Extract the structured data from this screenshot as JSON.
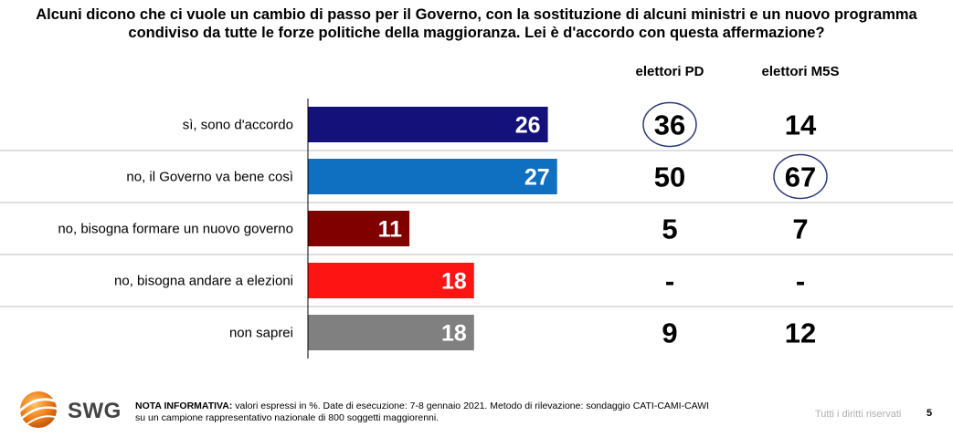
{
  "title_line1": "Alcuni dicono che ci vuole un cambio di passo per il Governo, con la sostituzione di alcuni ministri e un nuovo programma",
  "title_line2": "condiviso da tutte le forze politiche della maggioranza. Lei è d'accordo con questa affermazione?",
  "columns": {
    "pd": "elettori PD",
    "m5s": "elettori M5S"
  },
  "chart_data": {
    "type": "bar",
    "orientation": "horizontal",
    "categories": [
      "sì, sono d'accordo",
      "no, il Governo va bene così",
      "no, bisogna formare un nuovo governo",
      "no, bisogna andare a elezioni",
      "non saprei"
    ],
    "values": [
      26,
      27,
      11,
      18,
      18
    ],
    "bar_colors": [
      "#14127a",
      "#0f6fc0",
      "#800000",
      "#ff1414",
      "#808080"
    ],
    "value_unit": "%",
    "table_columns": [
      {
        "name": "elettori PD",
        "values": [
          "36",
          "50",
          "5",
          "-",
          "9"
        ],
        "circled_index": 0
      },
      {
        "name": "elettori M5S",
        "values": [
          "14",
          "67",
          "7",
          "-",
          "12"
        ],
        "circled_index": 1
      }
    ]
  },
  "footer": {
    "note_label": "NOTA INFORMATIVA:",
    "note_line1": " valori espressi in %. Date di esecuzione: 7-8 gennaio 2021. Metodo di rilevazione: sondaggio CATI-CAMI-CAWI",
    "note_line2": "su un campione rappresentativo nazionale di 800 soggetti maggiorenni.",
    "rights": "Tutti i diritti riservati",
    "page": "5"
  },
  "logo": {
    "text": "SWG",
    "icon": "swg-globe-logo",
    "color": "#f07f1a"
  }
}
